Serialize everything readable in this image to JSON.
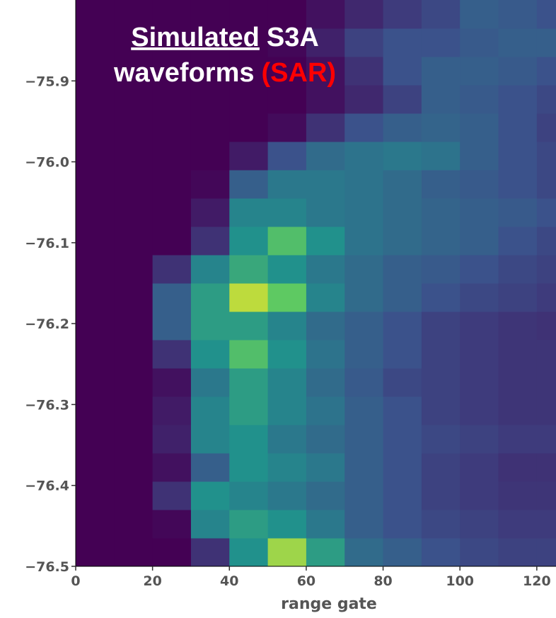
{
  "chart_data": {
    "type": "heatmap",
    "colormap": "viridis",
    "title": [
      {
        "text": "Simulated",
        "underline": true,
        "color": "#ffffff"
      },
      {
        "text": "S3A",
        "color": "#ffffff"
      },
      {
        "text": "waveforms",
        "color": "#ffffff"
      },
      {
        "text": "(SAR)",
        "color": "#ff0000"
      }
    ],
    "xlabel": "range gate",
    "xlim": [
      0,
      125
    ],
    "xticks": [
      0,
      20,
      40,
      60,
      80,
      100,
      120
    ],
    "ylim": [
      -76.5,
      -75.8
    ],
    "yticks": [
      {
        "value": -75.9,
        "label": "−75.9"
      },
      {
        "value": -76.0,
        "label": "−76.0"
      },
      {
        "value": -76.1,
        "label": "−76.1"
      },
      {
        "value": -76.2,
        "label": "−76.2"
      },
      {
        "value": -76.3,
        "label": "−76.3"
      },
      {
        "value": -76.4,
        "label": "−76.4"
      },
      {
        "value": -76.5,
        "label": "−76.5"
      }
    ],
    "x_edges": [
      0,
      10,
      20,
      30,
      40,
      50,
      60,
      70,
      80,
      90,
      100,
      110,
      120,
      125
    ],
    "y_edges": [
      -76.5,
      -76.465,
      -76.43,
      -76.395,
      -76.36,
      -76.325,
      -76.29,
      -76.255,
      -76.22,
      -76.185,
      -76.15,
      -76.115,
      -76.08,
      -76.045,
      -76.01,
      -75.975,
      -75.94,
      -75.905,
      -75.87,
      -75.835,
      -75.8
    ],
    "z": [
      [
        0,
        0,
        0,
        0.15,
        0.5,
        0.85,
        0.55,
        0.35,
        0.3,
        0.25,
        0.22,
        0.2,
        0.2
      ],
      [
        0,
        0,
        0.02,
        0.45,
        0.55,
        0.5,
        0.4,
        0.3,
        0.25,
        0.22,
        0.2,
        0.18,
        0.18
      ],
      [
        0,
        0,
        0.15,
        0.5,
        0.45,
        0.4,
        0.35,
        0.3,
        0.25,
        0.2,
        0.18,
        0.16,
        0.16
      ],
      [
        0,
        0,
        0.05,
        0.3,
        0.5,
        0.45,
        0.4,
        0.3,
        0.25,
        0.2,
        0.18,
        0.15,
        0.15
      ],
      [
        0,
        0,
        0.1,
        0.45,
        0.5,
        0.4,
        0.35,
        0.3,
        0.25,
        0.22,
        0.2,
        0.18,
        0.18
      ],
      [
        0,
        0,
        0.08,
        0.45,
        0.55,
        0.45,
        0.38,
        0.3,
        0.25,
        0.2,
        0.18,
        0.16,
        0.16
      ],
      [
        0,
        0,
        0.05,
        0.4,
        0.55,
        0.45,
        0.35,
        0.28,
        0.22,
        0.2,
        0.18,
        0.16,
        0.16
      ],
      [
        0,
        0,
        0.15,
        0.5,
        0.7,
        0.5,
        0.38,
        0.3,
        0.25,
        0.2,
        0.18,
        0.16,
        0.16
      ],
      [
        0,
        0,
        0.3,
        0.55,
        0.55,
        0.45,
        0.35,
        0.3,
        0.25,
        0.2,
        0.18,
        0.16,
        0.15
      ],
      [
        0,
        0,
        0.3,
        0.55,
        0.9,
        0.75,
        0.45,
        0.35,
        0.3,
        0.25,
        0.22,
        0.2,
        0.18
      ],
      [
        0,
        0,
        0.15,
        0.45,
        0.6,
        0.5,
        0.4,
        0.35,
        0.3,
        0.28,
        0.25,
        0.22,
        0.2
      ],
      [
        0,
        0,
        0,
        0.15,
        0.5,
        0.7,
        0.5,
        0.38,
        0.35,
        0.32,
        0.3,
        0.25,
        0.22
      ],
      [
        0,
        0,
        0,
        0.08,
        0.45,
        0.45,
        0.4,
        0.38,
        0.35,
        0.32,
        0.3,
        0.28,
        0.25
      ],
      [
        0,
        0,
        0,
        0.02,
        0.3,
        0.4,
        0.4,
        0.38,
        0.35,
        0.3,
        0.28,
        0.25,
        0.22
      ],
      [
        0,
        0,
        0,
        0,
        0.08,
        0.25,
        0.35,
        0.38,
        0.4,
        0.38,
        0.3,
        0.25,
        0.22
      ],
      [
        0,
        0,
        0,
        0,
        0,
        0.03,
        0.15,
        0.25,
        0.3,
        0.32,
        0.3,
        0.25,
        0.2
      ],
      [
        0,
        0,
        0,
        0,
        0,
        0,
        0.05,
        0.12,
        0.2,
        0.3,
        0.28,
        0.25,
        0.22
      ],
      [
        0,
        0,
        0,
        0,
        0,
        0,
        0.05,
        0.15,
        0.25,
        0.3,
        0.3,
        0.28,
        0.25
      ],
      [
        0,
        0,
        0,
        0,
        0,
        0.02,
        0.1,
        0.2,
        0.25,
        0.25,
        0.28,
        0.3,
        0.3
      ],
      [
        0,
        0,
        0,
        0,
        0,
        0,
        0.05,
        0.12,
        0.18,
        0.22,
        0.3,
        0.28,
        0.25
      ]
    ]
  }
}
